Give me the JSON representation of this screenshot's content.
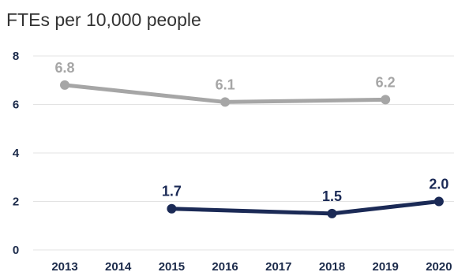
{
  "chart_data": {
    "type": "line",
    "title": "FTEs per 10,000 people",
    "x": [
      2013,
      2014,
      2015,
      2016,
      2017,
      2018,
      2019,
      2020
    ],
    "ylim": [
      0,
      8
    ],
    "yticks": [
      0,
      2,
      4,
      6,
      8
    ],
    "grid": true,
    "legend": "none",
    "series": [
      {
        "color": "#a6a6a6",
        "points": [
          {
            "x": 2013,
            "y": 6.8
          },
          {
            "x": 2016,
            "y": 6.1
          },
          {
            "x": 2019,
            "y": 6.2
          }
        ],
        "labels": [
          "6.8",
          "6.1",
          "6.2"
        ]
      },
      {
        "color": "#1b2a56",
        "points": [
          {
            "x": 2015,
            "y": 1.7
          },
          {
            "x": 2018,
            "y": 1.5
          },
          {
            "x": 2020,
            "y": 2.0
          }
        ],
        "labels": [
          "1.7",
          "1.5",
          "2.0"
        ]
      }
    ]
  }
}
